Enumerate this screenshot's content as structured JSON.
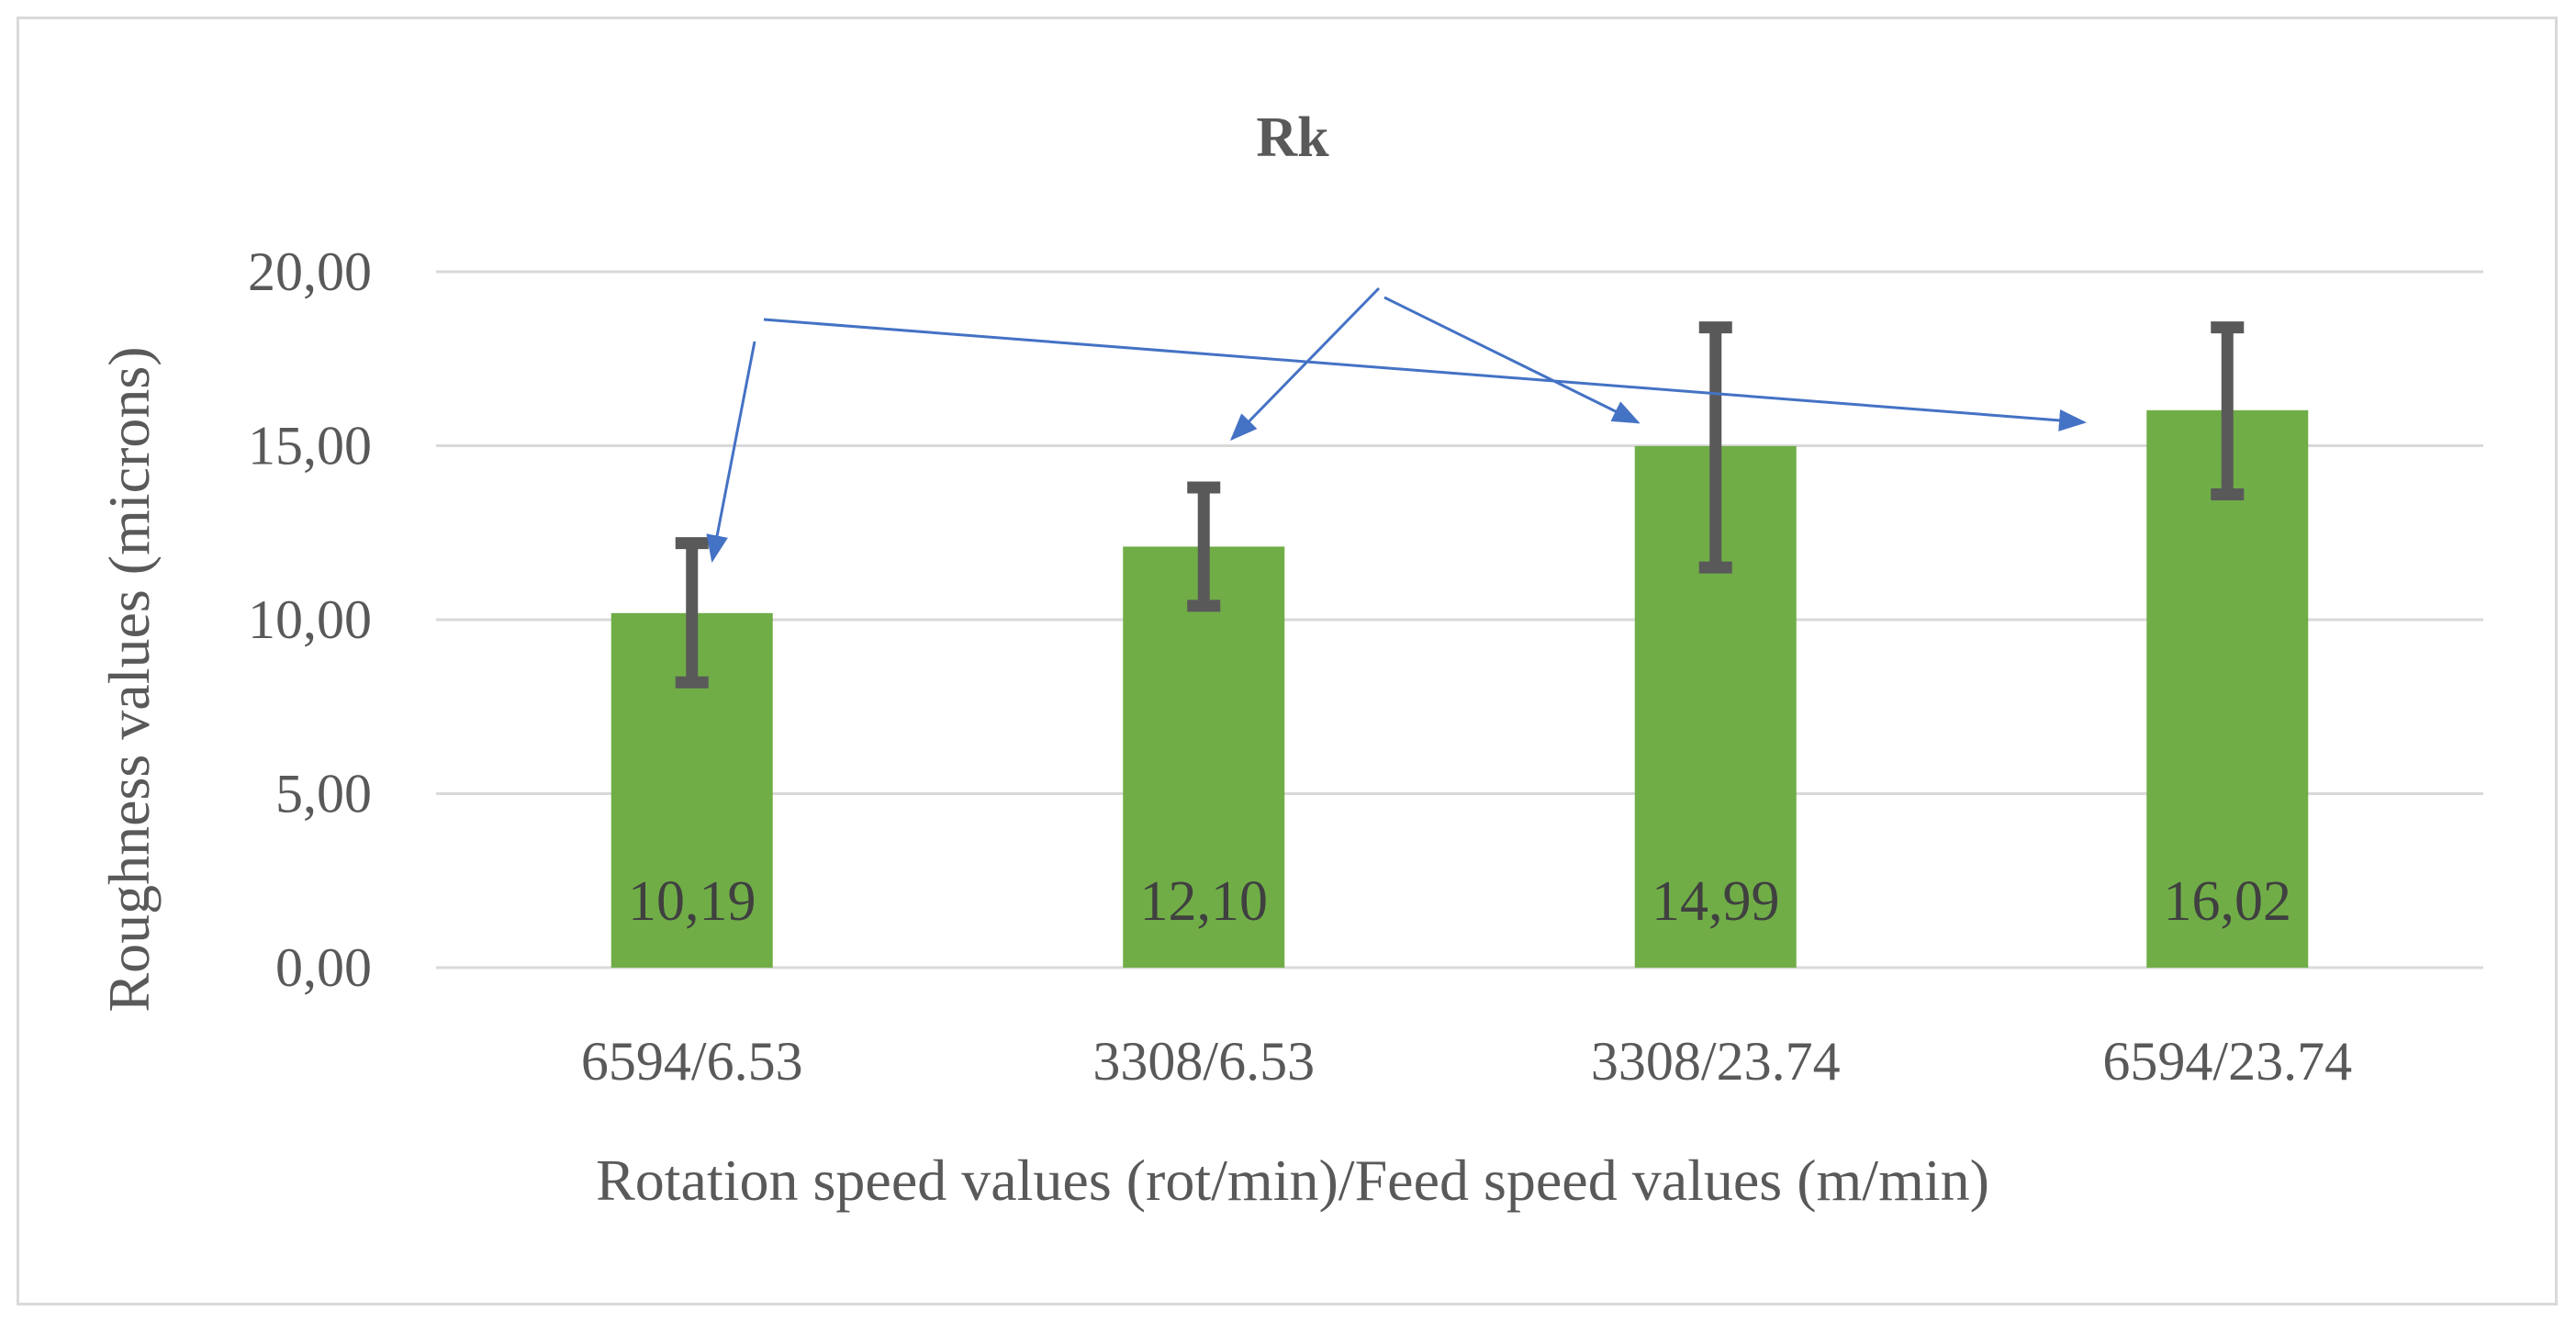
{
  "chart_data": {
    "type": "bar",
    "title": "Rk",
    "xlabel": "Rotation speed values (rot/min)/Feed speed values (m/min)",
    "ylabel": "Roughness values (microns)",
    "categories": [
      "6594/6.53",
      "3308/6.53",
      "3308/23.74",
      "6594/23.74"
    ],
    "values": [
      10.19,
      12.1,
      14.99,
      16.02
    ],
    "value_labels": [
      "10,19",
      "12,10",
      "14,99",
      "16,02"
    ],
    "error_low": [
      8.2,
      10.4,
      11.5,
      13.6
    ],
    "error_high": [
      12.2,
      13.8,
      18.4,
      18.4
    ],
    "ylim": [
      0,
      20
    ],
    "yticks": [
      0,
      5,
      10,
      15,
      20
    ],
    "ytick_labels": [
      "0,00",
      "5,00",
      "10,00",
      "15,00",
      "20,00"
    ],
    "grid": true,
    "legend": "none",
    "colors": {
      "bar": "#70ad47",
      "error_bar": "#595959",
      "gridline": "#d9d9d9",
      "arrow": "#4472c4"
    },
    "annotations": [
      {
        "type": "arrow",
        "from_category": 0,
        "to_category": 3,
        "group": "rotation"
      },
      {
        "type": "arrow",
        "from_category": 0,
        "to_category": 0,
        "group": "rotation"
      },
      {
        "type": "arrow",
        "from_category": 1,
        "to_category": 1,
        "group": "feed"
      },
      {
        "type": "arrow",
        "from_category": 2,
        "to_category": 2,
        "group": "feed"
      }
    ]
  }
}
